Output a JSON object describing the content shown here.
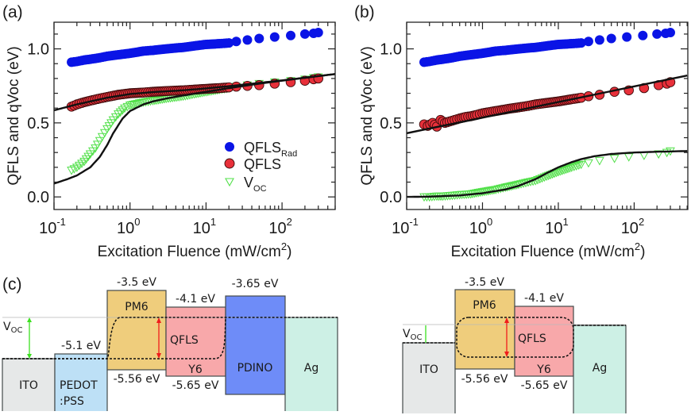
{
  "figure": {
    "panel_labels": [
      "(a)",
      "(b)",
      "(c)"
    ]
  },
  "chart_data": [
    {
      "type": "scatter",
      "panel": "(a)",
      "xscale": "log",
      "xlabel": "Excitation Fluence (mW/cm",
      "xlabel_sup": "2",
      "xlabel_close": ")",
      "ylabel": "QFLS and qVoc (eV)",
      "xlim": [
        0.1,
        500
      ],
      "ylim": [
        -0.085,
        1.18
      ],
      "xticks": [
        {
          "base": "10",
          "exp": "-1",
          "value": 0.1
        },
        {
          "base": "10",
          "exp": "0",
          "value": 1
        },
        {
          "base": "10",
          "exp": "1",
          "value": 10
        },
        {
          "base": "10",
          "exp": "2",
          "value": 100
        }
      ],
      "yticks": [
        {
          "label": "0.0",
          "value": 0.0
        },
        {
          "label": "0.5",
          "value": 0.5
        },
        {
          "label": "1.0",
          "value": 1.0
        }
      ],
      "legend": {
        "position": "lower-right",
        "entries": [
          {
            "label": "QFLS",
            "sub": "Rad",
            "marker": "filled-circle",
            "color": "#0a14e6"
          },
          {
            "label": "QFLS",
            "sub": "",
            "marker": "circle-red",
            "color": "#e8303a"
          },
          {
            "label": "V",
            "sub": "OC",
            "marker": "open-triangle-down",
            "color": "#52e04a"
          }
        ]
      },
      "series": [
        {
          "name": "QFLS_Rad",
          "marker": "filled-circle",
          "color": "#0a14e6",
          "x": [
            0.17,
            0.2,
            0.25,
            0.3,
            0.4,
            0.5,
            0.7,
            1,
            1.5,
            2,
            3,
            5,
            7,
            10,
            15,
            20,
            25,
            35,
            50,
            80,
            130,
            200,
            260,
            300
          ],
          "y": [
            0.91,
            0.915,
            0.925,
            0.93,
            0.94,
            0.95,
            0.96,
            0.97,
            0.985,
            0.99,
            1.0,
            1.01,
            1.02,
            1.03,
            1.035,
            1.04,
            1.05,
            1.06,
            1.07,
            1.08,
            1.09,
            1.1,
            1.105,
            1.11
          ]
        },
        {
          "name": "QFLS",
          "marker": "circle-red",
          "color": "#e8303a",
          "x": [
            0.17,
            0.2,
            0.25,
            0.3,
            0.4,
            0.5,
            0.7,
            1,
            1.5,
            2,
            3,
            5,
            7,
            10,
            15,
            20,
            25,
            35,
            50,
            80,
            130,
            200,
            260,
            300
          ],
          "y": [
            0.61,
            0.625,
            0.64,
            0.65,
            0.665,
            0.675,
            0.69,
            0.7,
            0.705,
            0.71,
            0.715,
            0.72,
            0.725,
            0.73,
            0.735,
            0.74,
            0.745,
            0.75,
            0.755,
            0.765,
            0.775,
            0.785,
            0.795,
            0.8
          ]
        },
        {
          "name": "VOC",
          "marker": "open-triangle-down",
          "color": "#52e04a",
          "x": [
            0.17,
            0.2,
            0.25,
            0.3,
            0.35,
            0.4,
            0.5,
            0.6,
            0.7,
            0.85,
            1,
            1.5,
            2,
            3,
            5,
            7,
            10,
            15,
            20,
            25,
            35,
            50,
            80,
            130,
            200,
            260,
            300
          ],
          "y": [
            0.18,
            0.2,
            0.24,
            0.29,
            0.33,
            0.38,
            0.46,
            0.52,
            0.56,
            0.6,
            0.62,
            0.64,
            0.65,
            0.665,
            0.68,
            0.695,
            0.71,
            0.725,
            0.735,
            0.745,
            0.755,
            0.765,
            0.775,
            0.785,
            0.795,
            0.805,
            0.81
          ]
        },
        {
          "name": "QFLS fit",
          "type": "line",
          "color": "#111111",
          "x": [
            0.1,
            0.2,
            0.5,
            1,
            2,
            5,
            10,
            20,
            50,
            100,
            200,
            500
          ],
          "y": [
            0.585,
            0.625,
            0.67,
            0.695,
            0.708,
            0.72,
            0.733,
            0.748,
            0.77,
            0.787,
            0.805,
            0.83
          ]
        },
        {
          "name": "VOC fit",
          "type": "line",
          "color": "#111111",
          "x": [
            0.1,
            0.15,
            0.2,
            0.3,
            0.4,
            0.5,
            0.6,
            0.8,
            1,
            1.5,
            2,
            3,
            5,
            10,
            20,
            50,
            100,
            200,
            500
          ],
          "y": [
            0.09,
            0.12,
            0.145,
            0.2,
            0.27,
            0.35,
            0.43,
            0.53,
            0.58,
            0.625,
            0.645,
            0.665,
            0.685,
            0.71,
            0.735,
            0.765,
            0.785,
            0.805,
            0.83
          ]
        }
      ]
    },
    {
      "type": "scatter",
      "panel": "(b)",
      "xscale": "log",
      "xlabel": "Excitation Fluence (mW/cm",
      "xlabel_sup": "2",
      "xlabel_close": ")",
      "ylabel": "QFLS and qVoc (eV)",
      "xlim": [
        0.1,
        510
      ],
      "ylim": [
        -0.085,
        1.18
      ],
      "xticks": [
        {
          "base": "10",
          "exp": "-1",
          "value": 0.1
        },
        {
          "base": "10",
          "exp": "0",
          "value": 1
        },
        {
          "base": "10",
          "exp": "1",
          "value": 10
        },
        {
          "base": "10",
          "exp": "2",
          "value": 100
        }
      ],
      "yticks": [
        {
          "label": "0.0",
          "value": 0.0
        },
        {
          "label": "0.5",
          "value": 0.5
        },
        {
          "label": "1.0",
          "value": 1.0
        }
      ],
      "series": [
        {
          "name": "QFLS_Rad",
          "marker": "filled-circle",
          "color": "#0a14e6",
          "x": [
            0.17,
            0.2,
            0.25,
            0.3,
            0.4,
            0.5,
            0.7,
            1,
            1.5,
            2,
            3,
            5,
            7,
            10,
            15,
            20,
            25,
            35,
            50,
            80,
            130,
            200,
            260,
            300
          ],
          "y": [
            0.91,
            0.915,
            0.925,
            0.93,
            0.94,
            0.95,
            0.96,
            0.97,
            0.985,
            0.99,
            1.0,
            1.01,
            1.02,
            1.03,
            1.035,
            1.04,
            1.05,
            1.06,
            1.07,
            1.08,
            1.09,
            1.1,
            1.105,
            1.11
          ]
        },
        {
          "name": "QFLS",
          "marker": "circle-red",
          "color": "#e8303a",
          "x": [
            0.17,
            0.19,
            0.22,
            0.25,
            0.28,
            0.32,
            0.37,
            0.43,
            0.5,
            0.6,
            0.7,
            0.85,
            1,
            1.3,
            1.7,
            2.2,
            3,
            4,
            5,
            7,
            10,
            15,
            20,
            25,
            35,
            55,
            85,
            135,
            210,
            270,
            300
          ],
          "y": [
            0.49,
            0.48,
            0.5,
            0.475,
            0.52,
            0.5,
            0.51,
            0.52,
            0.53,
            0.54,
            0.545,
            0.555,
            0.565,
            0.575,
            0.585,
            0.595,
            0.605,
            0.615,
            0.625,
            0.635,
            0.645,
            0.66,
            0.67,
            0.68,
            0.69,
            0.71,
            0.72,
            0.735,
            0.755,
            0.765,
            0.775
          ]
        },
        {
          "name": "VOC",
          "marker": "open-triangle-down",
          "color": "#52e04a",
          "x": [
            0.17,
            0.2,
            0.25,
            0.3,
            0.4,
            0.5,
            0.7,
            1,
            1.5,
            2,
            3,
            4,
            5,
            7,
            10,
            15,
            20,
            25,
            35,
            55,
            85,
            135,
            210,
            270,
            300
          ],
          "y": [
            0.0,
            0.0,
            0.005,
            0.005,
            0.01,
            0.015,
            0.02,
            0.035,
            0.05,
            0.065,
            0.085,
            0.1,
            0.11,
            0.14,
            0.17,
            0.2,
            0.22,
            0.23,
            0.245,
            0.26,
            0.27,
            0.28,
            0.29,
            0.3,
            0.31
          ]
        },
        {
          "name": "QFLS fit",
          "type": "line",
          "color": "#111111",
          "x": [
            0.1,
            500
          ],
          "y": [
            0.43,
            0.82
          ]
        },
        {
          "name": "VOC fit",
          "type": "line",
          "color": "#111111",
          "x": [
            0.1,
            0.2,
            0.5,
            1,
            2,
            3,
            5,
            7,
            10,
            15,
            20,
            30,
            50,
            100,
            200,
            500
          ],
          "y": [
            0.0,
            0.002,
            0.01,
            0.025,
            0.05,
            0.075,
            0.12,
            0.16,
            0.2,
            0.235,
            0.255,
            0.275,
            0.29,
            0.3,
            0.305,
            0.31
          ]
        }
      ]
    }
  ],
  "band_diagrams": {
    "left": {
      "voc_label": "V",
      "voc_sub": "OC",
      "qfls_label": "QFLS",
      "layers": [
        {
          "name": "ITO",
          "label": "ITO",
          "color": "#e6e8e8"
        },
        {
          "name": "PEDOT:PSS",
          "label_line1": "PEDOT",
          "label_line2": ":PSS",
          "color": "#bde0f6",
          "energy_label": "-5.1 eV"
        },
        {
          "name": "PM6",
          "label": "PM6",
          "color": "#efcd7c",
          "top_label": "-3.5 eV",
          "bottom_label": "-5.56 eV"
        },
        {
          "name": "Y6",
          "label": "Y6",
          "color": "#f8a8aa",
          "top_label": "-4.1 eV",
          "bottom_label": "-5.65 eV"
        },
        {
          "name": "PDINO",
          "label": "PDINO",
          "color": "#6e8cf8",
          "top_label": "-3.65 eV"
        },
        {
          "name": "Ag",
          "label": "Ag",
          "color": "#cdf0e5"
        }
      ]
    },
    "right": {
      "voc_label": "V",
      "voc_sub": "OC",
      "qfls_label": "QFLS",
      "layers": [
        {
          "name": "ITO",
          "label": "ITO",
          "color": "#e6e8e8"
        },
        {
          "name": "PM6",
          "label": "PM6",
          "color": "#efcd7c",
          "top_label": "-3.5 eV",
          "bottom_label": "-5.56 eV"
        },
        {
          "name": "Y6",
          "label": "Y6",
          "color": "#f8a8aa",
          "top_label": "-4.1 eV",
          "bottom_label": "-5.65 eV"
        },
        {
          "name": "Ag",
          "label": "Ag",
          "color": "#cdf0e5"
        }
      ]
    },
    "colors": {
      "voc": "#3ce020",
      "qfls": "#f01c1c",
      "outline": "#444a4a"
    }
  }
}
